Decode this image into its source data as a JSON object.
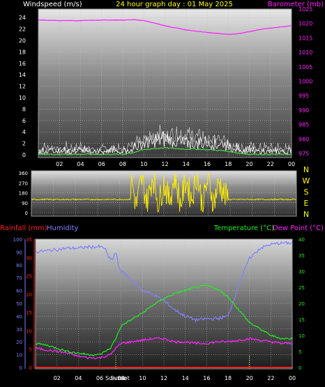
{
  "header": {
    "left_title": "Windspeed (m/s)",
    "center_title": "24 hour graph day : 01 May 2025",
    "right_title": "Barometer (mb)"
  },
  "colors": {
    "wind": "#ffffff",
    "gust": "#cfcfcf",
    "avg_wind": "#44dd44",
    "barometer": "#ff22ff",
    "direction": "#ffee00",
    "rain": "#ff2222",
    "humidity": "#8080ff",
    "temperature": "#22ee22",
    "dew_point": "#ff22ff",
    "title": "#ffff00"
  },
  "chart_data": [
    {
      "id": "wind_baro",
      "type": "line",
      "title": "24 hour graph day : 01 May 2025",
      "xlabel": "",
      "ylabel_left": "Windspeed (m/s)",
      "ylabel_right": "Barometer (mb)",
      "x_ticks": [
        "02",
        "04",
        "06",
        "08",
        "10",
        "12",
        "14",
        "16",
        "18",
        "20",
        "22",
        "00"
      ],
      "ylim_left": [
        0,
        25
      ],
      "y_ticks_left": [
        0,
        2,
        4,
        6,
        8,
        10,
        12,
        14,
        16,
        18,
        20,
        22,
        24
      ],
      "ylim_right": [
        975,
        1025
      ],
      "y_ticks_right": [
        975,
        980,
        985,
        990,
        995,
        1000,
        1005,
        1010,
        1015,
        1020,
        1025
      ],
      "grid": true,
      "series": [
        {
          "name": "Barometer",
          "axis": "right",
          "x": [
            0,
            2,
            4,
            6,
            8,
            9,
            10,
            11,
            12,
            13,
            14,
            15,
            16,
            17,
            18,
            19,
            20,
            21,
            22,
            23,
            24
          ],
          "values": [
            1021.2,
            1021.0,
            1021.0,
            1021.2,
            1021.2,
            1021.3,
            1021.0,
            1020.2,
            1019.2,
            1018.5,
            1017.8,
            1017.3,
            1016.9,
            1016.6,
            1016.2,
            1016.5,
            1017.2,
            1017.9,
            1018.4,
            1018.8,
            1019.2
          ]
        },
        {
          "name": "Wind speed",
          "axis": "left",
          "x": [
            0,
            1,
            2,
            3,
            4,
            5,
            6,
            7,
            8,
            9,
            10,
            11,
            12,
            13,
            14,
            15,
            16,
            17,
            18,
            19,
            20,
            21,
            22,
            23,
            24
          ],
          "values": [
            0.6,
            0.9,
            0.8,
            0.6,
            0.9,
            0.7,
            0.6,
            0.8,
            0.5,
            1.4,
            2.2,
            2.7,
            2.9,
            2.7,
            2.3,
            2.3,
            2.2,
            2.0,
            1.6,
            1.0,
            0.8,
            0.8,
            0.6,
            0.7,
            0.6
          ]
        },
        {
          "name": "Gust",
          "axis": "left",
          "x": [
            0,
            1,
            2,
            3,
            4,
            5,
            6,
            7,
            8,
            9,
            10,
            11,
            12,
            13,
            14,
            15,
            16,
            17,
            18,
            19,
            20,
            21,
            22,
            23,
            24
          ],
          "values": [
            1.0,
            1.6,
            1.4,
            1.2,
            1.5,
            1.2,
            1.0,
            1.3,
            0.9,
            2.3,
            3.2,
            4.0,
            4.2,
            3.9,
            3.6,
            3.5,
            3.3,
            3.0,
            2.4,
            1.6,
            1.3,
            1.4,
            1.1,
            1.2,
            1.0
          ]
        },
        {
          "name": "Average wind",
          "axis": "left",
          "x": [
            0,
            2,
            4,
            6,
            8,
            9,
            10,
            11,
            12,
            13,
            14,
            15,
            16,
            17,
            18,
            19,
            20,
            22,
            24
          ],
          "values": [
            0.1,
            0.1,
            0.1,
            0.1,
            0.1,
            0.4,
            0.9,
            1.1,
            1.2,
            1.1,
            1.0,
            1.0,
            0.9,
            0.8,
            0.6,
            0.3,
            0.1,
            0.1,
            0.1
          ]
        }
      ]
    },
    {
      "id": "direction",
      "type": "line",
      "title": "",
      "ylim": [
        0,
        360
      ],
      "y_ticks": [
        0,
        90,
        180,
        270,
        360
      ],
      "y_tick_labels": [
        "0",
        "90",
        "180",
        "270",
        "360"
      ],
      "compass_labels": [
        "N",
        "W",
        "S",
        "E",
        "N"
      ],
      "x_ticks": [
        "02",
        "04",
        "06",
        "08",
        "10",
        "12",
        "14",
        "16",
        "18",
        "20",
        "22",
        "00"
      ],
      "grid": true,
      "series": [
        {
          "name": "Wind direction",
          "x": [
            0,
            1,
            2,
            3,
            4,
            5,
            6,
            7,
            8,
            8.5,
            9,
            9.5,
            10,
            10.5,
            11,
            11.5,
            12,
            12.5,
            13,
            13.5,
            14,
            14.5,
            15,
            15.5,
            16,
            16.5,
            17,
            17.5,
            18,
            19,
            20,
            21,
            22,
            23,
            24
          ],
          "values": [
            120,
            118,
            122,
            118,
            120,
            119,
            121,
            118,
            120,
            150,
            330,
            60,
            300,
            90,
            350,
            80,
            270,
            110,
            340,
            70,
            300,
            120,
            350,
            60,
            320,
            90,
            280,
            150,
            120,
            118,
            121,
            119,
            120,
            118,
            121
          ]
        }
      ]
    },
    {
      "id": "temp_hum_rain",
      "type": "line",
      "title": "",
      "ylabel_left_outer": "Rainfall (mm)",
      "ylabel_left_inner": "Humidity",
      "ylabel_right_a": "Temperature (°C)",
      "ylabel_right_b": "Dew Point (°C)",
      "x_ticks": [
        "02",
        "04",
        "06",
        "08",
        "10",
        "12",
        "14",
        "16",
        "18",
        "20",
        "22",
        "00"
      ],
      "sunrise_label": "Sunrise",
      "sunset_label": "Sunset",
      "sunrise_hour": 7.5,
      "sunset_hour": 20.0,
      "ylim_humidity": [
        0,
        100
      ],
      "y_ticks_humidity": [
        0,
        10,
        20,
        30,
        40,
        50,
        60,
        70,
        80,
        90,
        100
      ],
      "ylim_rain": [
        0,
        35
      ],
      "y_ticks_rain": [
        0,
        5,
        10,
        15,
        20,
        25,
        30,
        35
      ],
      "ylim_temp": [
        0,
        40
      ],
      "y_ticks_temp": [
        0,
        5,
        10,
        15,
        20,
        25,
        30,
        35,
        40
      ],
      "grid": true,
      "series": [
        {
          "name": "Humidity",
          "axis": "humidity",
          "x": [
            0,
            1,
            2,
            3,
            4,
            5,
            6,
            6.5,
            6.8,
            7.2,
            7.5,
            7.8,
            8,
            8.5,
            9,
            10,
            11,
            12,
            13,
            14,
            15,
            16,
            17,
            18,
            18.5,
            19,
            20,
            21,
            22,
            23,
            24
          ],
          "values": [
            90,
            91,
            92,
            93,
            93,
            94,
            94,
            93,
            86,
            84,
            90,
            78,
            75,
            72,
            68,
            60,
            57,
            52,
            45,
            40,
            37,
            38,
            38,
            40,
            52,
            65,
            85,
            93,
            96,
            97,
            97
          ]
        },
        {
          "name": "Temperature",
          "axis": "temp",
          "x": [
            0,
            1,
            2,
            3,
            4,
            5,
            6,
            7,
            7.5,
            8,
            9,
            10,
            11,
            12,
            13,
            14,
            15,
            16,
            17,
            18,
            19,
            20,
            21,
            22,
            23,
            24
          ],
          "values": [
            7.5,
            7,
            6,
            5,
            4.5,
            4,
            4,
            6,
            9,
            13,
            15,
            17,
            19.5,
            21.5,
            23,
            24,
            25,
            25.5,
            24.5,
            22,
            18,
            14,
            12,
            10,
            9,
            9
          ]
        },
        {
          "name": "Dew Point",
          "axis": "temp",
          "x": [
            0,
            1,
            2,
            3,
            4,
            5,
            6,
            7,
            7.5,
            8,
            9,
            10,
            11,
            12,
            13,
            14,
            15,
            16,
            17,
            18,
            19,
            20,
            21,
            22,
            23,
            24
          ],
          "values": [
            6,
            5.5,
            5,
            4.5,
            3.5,
            3,
            3,
            4,
            6,
            7.5,
            8,
            8.5,
            9,
            9,
            8,
            8,
            7.5,
            7.5,
            8,
            8,
            8.5,
            9,
            8.5,
            8,
            7.5,
            7.5
          ]
        },
        {
          "name": "Rainfall",
          "axis": "rain",
          "x": [
            0,
            24
          ],
          "values": [
            0,
            0
          ]
        }
      ]
    }
  ]
}
